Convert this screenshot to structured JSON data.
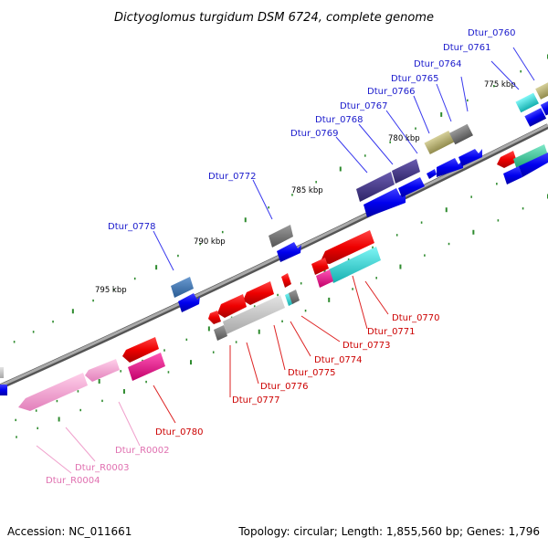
{
  "title": "Dictyoglomus turgidum DSM 6724, complete genome",
  "footer": {
    "accession": "Accession: NC_011661",
    "summary": "Topology: circular; Length: 1,855,560 bp; Genes: 1,796"
  },
  "colors": {
    "backbone": "#888888",
    "tick": "#2e8b2e",
    "label_forward": "#1a1acc",
    "label_reverse": "#cc0000",
    "label_rna": "#e070b0",
    "line_forward": "#3a3aee",
    "line_reverse": "#dd2222",
    "line_rna": "#f0a0cc"
  },
  "kbp_labels": [
    "775 kbp",
    "780 kbp",
    "785 kbp",
    "790 kbp",
    "795 kbp"
  ],
  "forward_labels": [
    "Dtur_0760",
    "Dtur_0761",
    "Dtur_0764",
    "Dtur_0765",
    "Dtur_0766",
    "Dtur_0767",
    "Dtur_0768",
    "Dtur_0769",
    "Dtur_0772",
    "Dtur_0778"
  ],
  "reverse_labels": [
    "Dtur_0770",
    "Dtur_0771",
    "Dtur_0773",
    "Dtur_0774",
    "Dtur_0775",
    "Dtur_0776",
    "Dtur_0777",
    "Dtur_0780"
  ],
  "rna_labels": [
    "Dtur_R0002",
    "Dtur_R0003",
    "Dtur_R0004"
  ]
}
